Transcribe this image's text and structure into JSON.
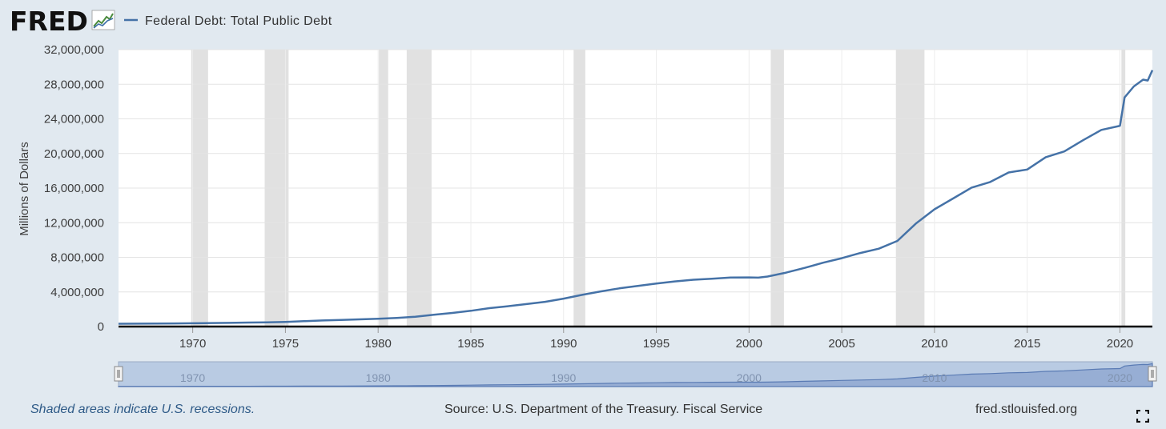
{
  "header": {
    "logo_text": "FRED",
    "series_title": "Federal Debt: Total Public Debt",
    "logo_icon": "trend-chart-icon"
  },
  "chart_data": {
    "type": "line",
    "title": "",
    "ylabel": "Millions of Dollars",
    "xlabel": "",
    "xlim": [
      1966.0,
      2021.75
    ],
    "ylim": [
      0,
      32000000
    ],
    "y_ticks": [
      {
        "value": 0,
        "label": "0"
      },
      {
        "value": 4000000,
        "label": "4,000,000"
      },
      {
        "value": 8000000,
        "label": "8,000,000"
      },
      {
        "value": 12000000,
        "label": "12,000,000"
      },
      {
        "value": 16000000,
        "label": "16,000,000"
      },
      {
        "value": 20000000,
        "label": "20,000,000"
      },
      {
        "value": 24000000,
        "label": "24,000,000"
      },
      {
        "value": 28000000,
        "label": "28,000,000"
      },
      {
        "value": 32000000,
        "label": "32,000,000"
      }
    ],
    "x_ticks": [
      {
        "value": 1970,
        "label": "1970"
      },
      {
        "value": 1975,
        "label": "1975"
      },
      {
        "value": 1980,
        "label": "1980"
      },
      {
        "value": 1985,
        "label": "1985"
      },
      {
        "value": 1990,
        "label": "1990"
      },
      {
        "value": 1995,
        "label": "1995"
      },
      {
        "value": 2000,
        "label": "2000"
      },
      {
        "value": 2005,
        "label": "2005"
      },
      {
        "value": 2010,
        "label": "2010"
      },
      {
        "value": 2015,
        "label": "2015"
      },
      {
        "value": 2020,
        "label": "2020"
      }
    ],
    "recessions": [
      [
        1969.92,
        1970.83
      ],
      [
        1973.88,
        1975.17
      ],
      [
        1980.04,
        1980.54
      ],
      [
        1981.54,
        1982.88
      ],
      [
        1990.54,
        1991.17
      ],
      [
        2001.17,
        2001.88
      ],
      [
        2007.92,
        2009.46
      ],
      [
        2020.08,
        2020.29
      ]
    ],
    "grid": true,
    "legend_placement": "top-left",
    "series": [
      {
        "name": "Federal Debt: Total Public Debt",
        "color": "#4572a7",
        "points": [
          [
            1966.0,
            320000
          ],
          [
            1967.0,
            330000
          ],
          [
            1968.0,
            350000
          ],
          [
            1969.0,
            360000
          ],
          [
            1970.0,
            380000
          ],
          [
            1971.0,
            410000
          ],
          [
            1972.0,
            430000
          ],
          [
            1973.0,
            460000
          ],
          [
            1974.0,
            480000
          ],
          [
            1975.0,
            540000
          ],
          [
            1976.0,
            620000
          ],
          [
            1977.0,
            700000
          ],
          [
            1978.0,
            770000
          ],
          [
            1979.0,
            830000
          ],
          [
            1980.0,
            910000
          ],
          [
            1981.0,
            1000000
          ],
          [
            1982.0,
            1140000
          ],
          [
            1983.0,
            1370000
          ],
          [
            1984.0,
            1570000
          ],
          [
            1985.0,
            1820000
          ],
          [
            1986.0,
            2130000
          ],
          [
            1987.0,
            2350000
          ],
          [
            1988.0,
            2600000
          ],
          [
            1989.0,
            2860000
          ],
          [
            1990.0,
            3230000
          ],
          [
            1991.0,
            3660000
          ],
          [
            1992.0,
            4060000
          ],
          [
            1993.0,
            4410000
          ],
          [
            1994.0,
            4690000
          ],
          [
            1995.0,
            4970000
          ],
          [
            1996.0,
            5220000
          ],
          [
            1997.0,
            5410000
          ],
          [
            1998.0,
            5530000
          ],
          [
            1999.0,
            5660000
          ],
          [
            2000.0,
            5680000
          ],
          [
            2000.5,
            5650000
          ],
          [
            2001.0,
            5780000
          ],
          [
            2002.0,
            6230000
          ],
          [
            2003.0,
            6780000
          ],
          [
            2004.0,
            7380000
          ],
          [
            2005.0,
            7900000
          ],
          [
            2006.0,
            8500000
          ],
          [
            2007.0,
            9000000
          ],
          [
            2008.0,
            9900000
          ],
          [
            2009.0,
            11900000
          ],
          [
            2010.0,
            13550000
          ],
          [
            2011.0,
            14800000
          ],
          [
            2012.0,
            16060000
          ],
          [
            2013.0,
            16700000
          ],
          [
            2014.0,
            17800000
          ],
          [
            2015.0,
            18150000
          ],
          [
            2016.0,
            19570000
          ],
          [
            2017.0,
            20240000
          ],
          [
            2018.0,
            21520000
          ],
          [
            2019.0,
            22720000
          ],
          [
            2020.0,
            23200000
          ],
          [
            2020.25,
            26480000
          ],
          [
            2020.75,
            27750000
          ],
          [
            2021.0,
            28130000
          ],
          [
            2021.25,
            28530000
          ],
          [
            2021.5,
            28430000
          ],
          [
            2021.75,
            29620000
          ]
        ]
      }
    ]
  },
  "navigator": {
    "labels": [
      "1970",
      "1980",
      "1990",
      "2000",
      "2010",
      "2020"
    ]
  },
  "footer": {
    "note": "Shaded areas indicate U.S. recessions.",
    "source": "Source: U.S. Department of the Treasury. Fiscal Service",
    "site": "fred.stlouisfed.org"
  },
  "colors": {
    "page_bg": "#e1e9f0",
    "plot_bg": "#ffffff",
    "line": "#4572a7",
    "recession": "#e1e1e1",
    "navigator_fill": "#b9cbe3"
  }
}
